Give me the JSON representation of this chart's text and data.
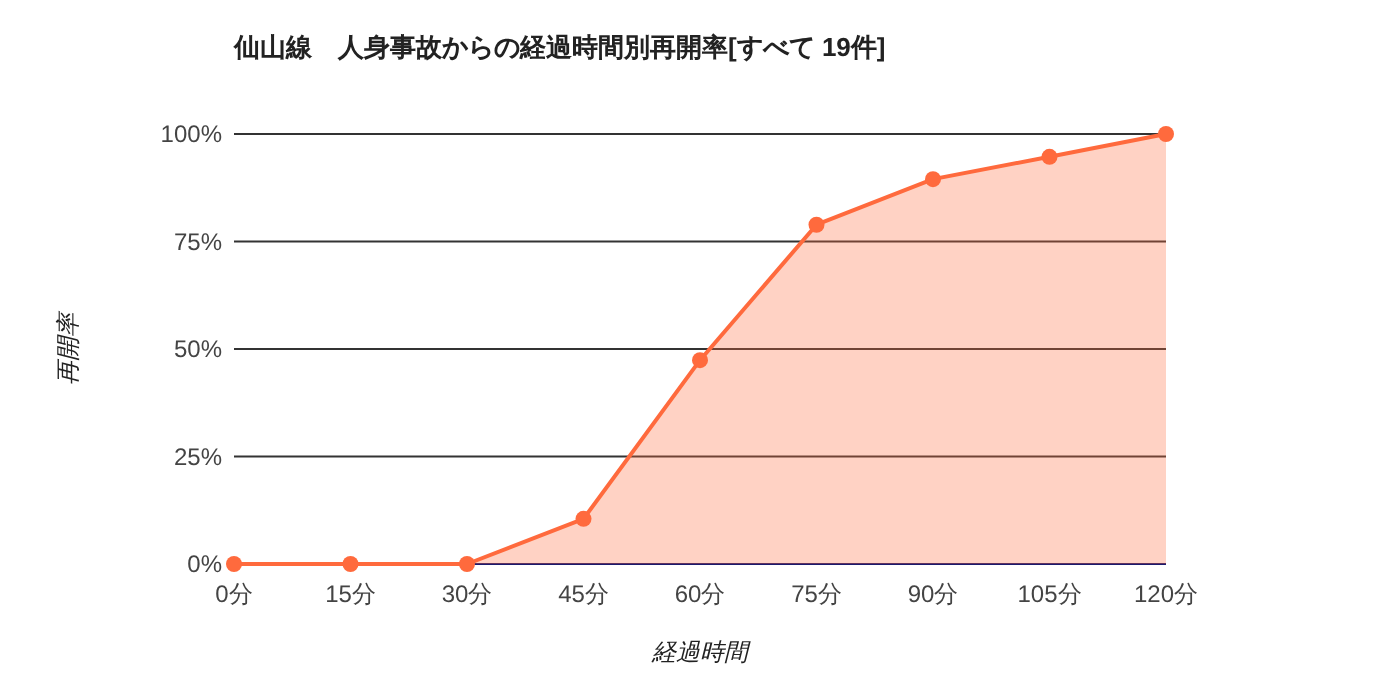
{
  "chart_data": {
    "type": "area",
    "title": "仙山線　人身事故からの経過時間別再開率[すべて 19件]",
    "xlabel": "経過時間",
    "ylabel": "再開率",
    "x": [
      0,
      15,
      30,
      45,
      60,
      75,
      90,
      105,
      120
    ],
    "series": [
      {
        "color": "#ff6a3d",
        "values": [
          0,
          0,
          0,
          10.5,
          47.4,
          78.9,
          89.5,
          94.7,
          100
        ]
      }
    ],
    "xlim": [
      0,
      120
    ],
    "xticks": [
      {
        "value": 0,
        "label": "0分"
      },
      {
        "value": 15,
        "label": "15分"
      },
      {
        "value": 30,
        "label": "30分"
      },
      {
        "value": 45,
        "label": "45分"
      },
      {
        "value": 60,
        "label": "60分"
      },
      {
        "value": 75,
        "label": "75分"
      },
      {
        "value": 90,
        "label": "90分"
      },
      {
        "value": 105,
        "label": "105分"
      },
      {
        "value": 120,
        "label": "120分"
      }
    ],
    "ylim": [
      0,
      100
    ],
    "yticks": [
      {
        "value": 0,
        "label": "0%"
      },
      {
        "value": 25,
        "label": "25%"
      },
      {
        "value": 50,
        "label": "50%"
      },
      {
        "value": 75,
        "label": "75%"
      },
      {
        "value": 100,
        "label": "100%"
      }
    ],
    "grid": "y",
    "marker": "circle"
  }
}
